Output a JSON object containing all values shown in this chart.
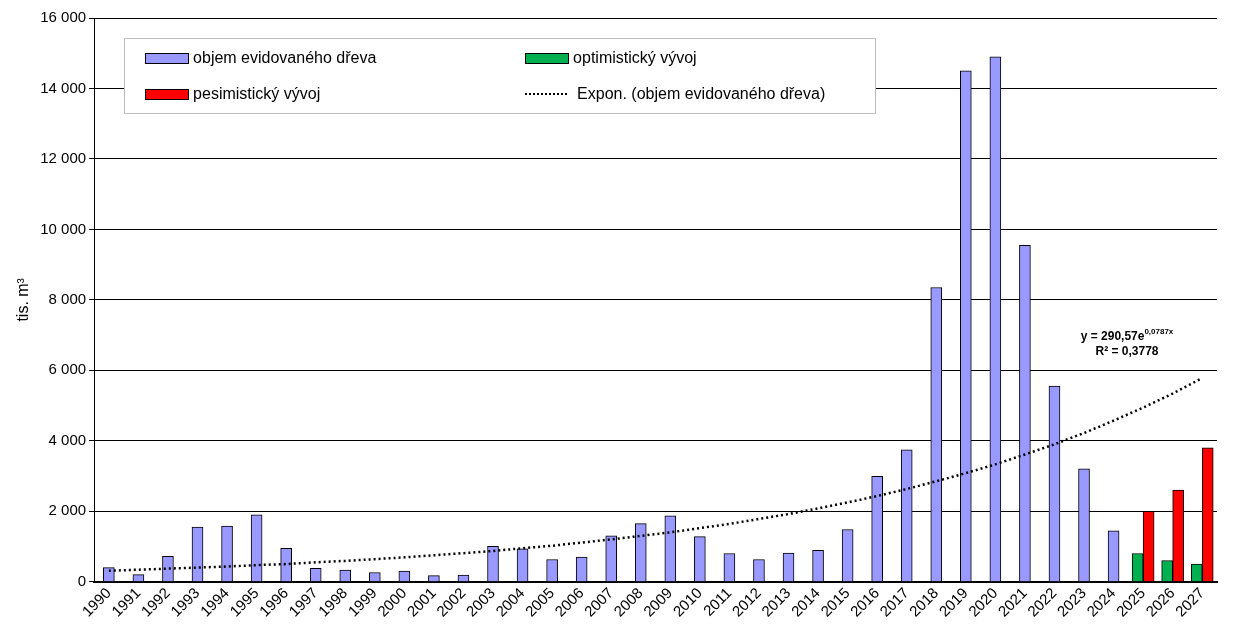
{
  "chart_data": {
    "type": "bar",
    "ylabel": "tis. m³",
    "categories": [
      "1990",
      "1991",
      "1992",
      "1993",
      "1994",
      "1995",
      "1996",
      "1997",
      "1998",
      "1999",
      "2000",
      "2001",
      "2002",
      "2003",
      "2004",
      "2005",
      "2006",
      "2007",
      "2008",
      "2009",
      "2010",
      "2011",
      "2012",
      "2013",
      "2014",
      "2015",
      "2016",
      "2017",
      "2018",
      "2019",
      "2020",
      "2021",
      "2022",
      "2023",
      "2024",
      "2025",
      "2026",
      "2027"
    ],
    "series": [
      {
        "name": "objem evidovaného dřeva",
        "color": "#9999ff",
        "values": [
          400,
          200,
          720,
          1550,
          1580,
          1900,
          950,
          380,
          330,
          260,
          300,
          170,
          190,
          1000,
          930,
          630,
          700,
          1300,
          1650,
          1870,
          1280,
          800,
          630,
          810,
          890,
          1480,
          2990,
          3740,
          8350,
          14500,
          14900,
          9550,
          5550,
          3200,
          1440,
          null,
          null,
          null
        ]
      },
      {
        "name": "optimistický vývoj",
        "color": "#00b050",
        "values": [
          null,
          null,
          null,
          null,
          null,
          null,
          null,
          null,
          null,
          null,
          null,
          null,
          null,
          null,
          null,
          null,
          null,
          null,
          null,
          null,
          null,
          null,
          null,
          null,
          null,
          null,
          null,
          null,
          null,
          null,
          null,
          null,
          null,
          null,
          null,
          800,
          600,
          500
        ]
      },
      {
        "name": "pesimistický vývoj",
        "color": "#ff0000",
        "values": [
          null,
          null,
          null,
          null,
          null,
          null,
          null,
          null,
          null,
          null,
          null,
          null,
          null,
          null,
          null,
          null,
          null,
          null,
          null,
          null,
          null,
          null,
          null,
          null,
          null,
          null,
          null,
          null,
          null,
          null,
          null,
          null,
          null,
          null,
          null,
          2000,
          2600,
          3800
        ]
      },
      {
        "name": "Expon. (objem evidovaného dřeva)",
        "type": "line",
        "color": "#000000",
        "line_style": "dotted",
        "marker": "none",
        "values": [
          310,
          340,
          370,
          400,
          430,
          470,
          500,
          550,
          590,
          640,
          690,
          750,
          810,
          870,
          950,
          1020,
          1110,
          1200,
          1300,
          1400,
          1520,
          1640,
          1780,
          1920,
          2080,
          2250,
          2430,
          2630,
          2850,
          3080,
          3330,
          3610,
          3900,
          4220,
          4570,
          4940,
          5340,
          5780
        ]
      }
    ],
    "ylim": [
      0,
      16000
    ],
    "yticks": [
      0,
      {
        "value": 2000,
        "label": "2 000"
      },
      {
        "value": 4000,
        "label": "4 000"
      },
      {
        "value": 6000,
        "label": "6 000"
      },
      {
        "value": 8000,
        "label": "8 000"
      },
      {
        "value": 10000,
        "label": "10 000"
      },
      {
        "value": 12000,
        "label": "12 000"
      },
      {
        "value": 14000,
        "label": "14 000"
      },
      {
        "value": 16000,
        "label": "16 000"
      }
    ],
    "grid": "y",
    "legend": "top left",
    "annotations": [
      "y = 290,57e$^{0,0787x}$",
      "R² = 0,3778"
    ]
  }
}
